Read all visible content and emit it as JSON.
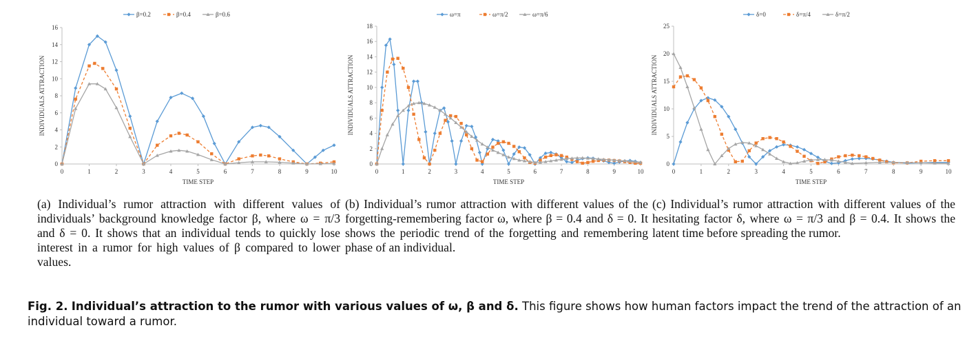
{
  "chart_data": [
    {
      "type": "line",
      "panel": "a",
      "xlabel": "TIME STEP",
      "ylabel": "INDIVIDUALS ATTRACTION",
      "xlim": [
        0,
        10
      ],
      "ylim": [
        0,
        16
      ],
      "xticks": [
        "0",
        "1",
        "2",
        "3",
        "4",
        "5",
        "6",
        "7",
        "8",
        "9",
        "10"
      ],
      "yticks": [
        "0",
        "2",
        "4",
        "6",
        "8",
        "10",
        "12",
        "14",
        "16"
      ],
      "legend_position": "top",
      "series": [
        {
          "name": "β=0.2",
          "color": "#5b9bd5",
          "marker": "diamond",
          "dash": "solid",
          "x": [
            0,
            0.5,
            1,
            1.3,
            1.6,
            2,
            2.5,
            3,
            3.5,
            4,
            4.4,
            4.8,
            5.2,
            5.6,
            6,
            6.5,
            7,
            7.3,
            7.6,
            8,
            8.5,
            9,
            9.3,
            9.6,
            10
          ],
          "y": [
            0,
            8.9,
            14,
            15,
            14.3,
            11,
            5.6,
            0,
            5,
            7.8,
            8.3,
            7.7,
            5.6,
            2.4,
            0,
            2.6,
            4.3,
            4.5,
            4.3,
            3.2,
            1.6,
            0,
            0.8,
            1.6,
            2.2
          ]
        },
        {
          "name": "β=0.4",
          "color": "#ed7d31",
          "marker": "square",
          "dash": "dashed",
          "x": [
            0,
            0.5,
            1,
            1.2,
            1.5,
            2,
            2.5,
            3,
            3.5,
            4,
            4.3,
            4.6,
            5,
            5.5,
            6,
            6.5,
            7,
            7.3,
            7.6,
            8,
            8.5,
            9,
            9.5,
            10
          ],
          "y": [
            0,
            7.6,
            11.5,
            11.8,
            11.2,
            8.8,
            4.2,
            0,
            2.2,
            3.3,
            3.6,
            3.4,
            2.6,
            1.2,
            0,
            0.6,
            0.95,
            1.05,
            0.95,
            0.6,
            0.25,
            0,
            0.1,
            0.25
          ]
        },
        {
          "name": "β=0.6",
          "color": "#a5a5a5",
          "marker": "triangle",
          "dash": "solid",
          "x": [
            0,
            0.5,
            1,
            1.3,
            1.6,
            2,
            2.5,
            3,
            3.5,
            4,
            4.3,
            4.6,
            5,
            5.5,
            6,
            6.5,
            7,
            7.5,
            8,
            8.5,
            9,
            9.5,
            10
          ],
          "y": [
            0,
            6.5,
            9.4,
            9.4,
            8.8,
            6.6,
            3.2,
            0,
            1,
            1.5,
            1.6,
            1.5,
            1.1,
            0.5,
            0,
            0.15,
            0.25,
            0.25,
            0.2,
            0.1,
            0,
            0.03,
            0.05
          ]
        }
      ]
    },
    {
      "type": "line",
      "panel": "b",
      "xlabel": "TIME STEP",
      "ylabel": "INDIVIDUALS ATTRACTION",
      "xlim": [
        0,
        10
      ],
      "ylim": [
        0,
        18
      ],
      "xticks": [
        "0",
        "1",
        "2",
        "3",
        "4",
        "5",
        "6",
        "7",
        "8",
        "9",
        "10"
      ],
      "yticks": [
        "0",
        "2",
        "4",
        "6",
        "8",
        "10",
        "12",
        "14",
        "16",
        "18"
      ],
      "legend_position": "top",
      "series": [
        {
          "name": "ω=π",
          "color": "#5b9bd5",
          "marker": "diamond",
          "dash": "solid",
          "x": [
            0,
            0.2,
            0.35,
            0.5,
            0.65,
            0.8,
            1,
            1.2,
            1.4,
            1.55,
            1.7,
            1.85,
            2,
            2.2,
            2.4,
            2.55,
            2.7,
            2.85,
            3,
            3.2,
            3.4,
            3.6,
            3.75,
            3.9,
            4,
            4.2,
            4.4,
            4.6,
            4.8,
            5,
            5.2,
            5.4,
            5.6,
            5.8,
            6,
            6.2,
            6.4,
            6.6,
            6.8,
            7,
            7.2,
            7.4,
            7.6,
            7.8,
            8,
            8.2,
            8.4,
            8.6,
            8.8,
            9,
            9.2,
            9.4,
            9.6,
            9.8,
            10
          ],
          "y": [
            0,
            10,
            15.5,
            16.3,
            13,
            7,
            0,
            7,
            10.8,
            10.8,
            8,
            4.2,
            0,
            4,
            7,
            7.3,
            5.5,
            3,
            0,
            3,
            5,
            4.9,
            3.5,
            1.5,
            0,
            2,
            3.2,
            3,
            1.8,
            0,
            1.3,
            2.2,
            2.1,
            1.2,
            0,
            0.8,
            1.4,
            1.5,
            1.3,
            0.8,
            0.3,
            0.2,
            0.5,
            0.7,
            0.8,
            0.75,
            0.6,
            0.4,
            0.2,
            0.1,
            0.25,
            0.4,
            0.45,
            0.35,
            0.2
          ]
        },
        {
          "name": "ω=π/2",
          "color": "#ed7d31",
          "marker": "square",
          "dash": "dashed",
          "x": [
            0,
            0.2,
            0.4,
            0.6,
            0.8,
            1,
            1.2,
            1.4,
            1.6,
            1.8,
            2,
            2.2,
            2.4,
            2.6,
            2.8,
            3,
            3.2,
            3.4,
            3.6,
            3.8,
            4,
            4.2,
            4.4,
            4.6,
            4.8,
            5,
            5.2,
            5.4,
            5.6,
            5.8,
            6,
            6.2,
            6.4,
            6.6,
            6.8,
            7,
            7.2,
            7.4,
            7.6,
            7.8,
            8,
            8.2,
            8.4,
            8.6,
            8.8,
            9,
            9.2,
            9.4,
            9.6,
            9.8,
            10
          ],
          "y": [
            0,
            7,
            12,
            13.7,
            13.8,
            12.5,
            10,
            6.5,
            3.2,
            0.8,
            0,
            1.8,
            4,
            5.7,
            6.3,
            6.2,
            5.3,
            3.8,
            2,
            0.5,
            0.3,
            1.3,
            2.2,
            2.7,
            2.9,
            2.7,
            2.3,
            1.6,
            0.8,
            0.2,
            0.1,
            0.5,
            0.9,
            1.1,
            1.2,
            1.1,
            0.9,
            0.6,
            0.3,
            0.1,
            0.2,
            0.35,
            0.45,
            0.5,
            0.5,
            0.45,
            0.4,
            0.3,
            0.2,
            0.1,
            0.1
          ]
        },
        {
          "name": "ω=π/6",
          "color": "#a5a5a5",
          "marker": "triangle",
          "dash": "solid",
          "x": [
            0,
            0.2,
            0.4,
            0.6,
            0.8,
            1,
            1.2,
            1.4,
            1.6,
            1.8,
            2,
            2.2,
            2.4,
            2.6,
            2.8,
            3,
            3.2,
            3.4,
            3.6,
            3.8,
            4,
            4.2,
            4.4,
            4.6,
            4.8,
            5,
            5.2,
            5.4,
            5.6,
            5.8,
            6,
            6.2,
            6.4,
            6.6,
            6.8,
            7,
            7.2,
            7.4,
            7.6,
            7.8,
            8,
            8.2,
            8.4,
            8.6,
            8.8,
            9,
            9.2,
            9.4,
            9.6,
            9.8,
            10
          ],
          "y": [
            0,
            2,
            3.8,
            5.2,
            6.3,
            7,
            7.6,
            7.9,
            8,
            7.9,
            7.7,
            7.4,
            7,
            6.5,
            6,
            5.4,
            4.8,
            4.2,
            3.6,
            3.1,
            2.6,
            2.2,
            1.8,
            1.5,
            1.2,
            0.9,
            0.7,
            0.5,
            0.4,
            0.3,
            0.2,
            0.2,
            0.3,
            0.4,
            0.5,
            0.6,
            0.7,
            0.75,
            0.8,
            0.8,
            0.75,
            0.7,
            0.65,
            0.6,
            0.55,
            0.5,
            0.45,
            0.4,
            0.35,
            0.3,
            0.2
          ]
        }
      ]
    },
    {
      "type": "line",
      "panel": "c",
      "xlabel": "TIME STEP",
      "ylabel": "INDIVIDUALS ATTRACTION",
      "xlim": [
        0,
        10
      ],
      "ylim": [
        0,
        25
      ],
      "xticks": [
        "0",
        "1",
        "2",
        "3",
        "4",
        "5",
        "6",
        "7",
        "8",
        "9",
        "10"
      ],
      "yticks": [
        "0",
        "5",
        "10",
        "15",
        "20",
        "25"
      ],
      "legend_position": "top",
      "series": [
        {
          "name": "δ=0",
          "color": "#5b9bd5",
          "marker": "diamond",
          "dash": "solid",
          "x": [
            0,
            0.25,
            0.5,
            0.75,
            1,
            1.25,
            1.5,
            1.75,
            2,
            2.25,
            2.5,
            2.75,
            3,
            3.25,
            3.5,
            3.75,
            4,
            4.25,
            4.5,
            4.75,
            5,
            5.25,
            5.5,
            5.75,
            6,
            6.25,
            6.5,
            6.75,
            7,
            7.25,
            7.5,
            7.75,
            8,
            8.5,
            9,
            9.5,
            10
          ],
          "y": [
            0,
            4,
            7.5,
            10,
            11.5,
            12,
            11.6,
            10.4,
            8.6,
            6.3,
            3.8,
            1.3,
            0,
            1.3,
            2.4,
            3.1,
            3.5,
            3.4,
            3.1,
            2.6,
            1.9,
            1.2,
            0.5,
            0.1,
            0.2,
            0.6,
            0.9,
            1,
            1,
            0.9,
            0.7,
            0.5,
            0.3,
            0.15,
            0.2,
            0.3,
            0.3
          ]
        },
        {
          "name": "δ=π/4",
          "color": "#ed7d31",
          "marker": "square",
          "dash": "dashed",
          "x": [
            0,
            0.25,
            0.5,
            0.75,
            1,
            1.25,
            1.5,
            1.75,
            2,
            2.25,
            2.5,
            2.75,
            3,
            3.25,
            3.5,
            3.75,
            4,
            4.25,
            4.5,
            4.75,
            5,
            5.25,
            5.5,
            5.75,
            6,
            6.25,
            6.5,
            6.75,
            7,
            7.25,
            7.5,
            7.75,
            8,
            8.5,
            9,
            9.5,
            10
          ],
          "y": [
            14,
            15.8,
            16,
            15.3,
            13.8,
            11.5,
            8.6,
            5.4,
            2.5,
            0.4,
            0.5,
            2.4,
            3.8,
            4.6,
            4.8,
            4.6,
            4,
            3.2,
            2.3,
            1.4,
            0.6,
            0.1,
            0.4,
            0.9,
            1.3,
            1.5,
            1.6,
            1.5,
            1.3,
            1,
            0.7,
            0.4,
            0.2,
            0.2,
            0.5,
            0.6,
            0.6
          ]
        },
        {
          "name": "δ=π/2",
          "color": "#a5a5a5",
          "marker": "triangle",
          "dash": "solid",
          "x": [
            0,
            0.25,
            0.5,
            0.75,
            1,
            1.25,
            1.5,
            1.75,
            2,
            2.25,
            2.5,
            2.75,
            3,
            3.25,
            3.5,
            3.75,
            4,
            4.25,
            4.5,
            4.75,
            5,
            5.25,
            5.5,
            5.75,
            6,
            6.25,
            6.5,
            7,
            7.5,
            8,
            8.5,
            9,
            9.5,
            10
          ],
          "y": [
            20,
            17.5,
            14,
            10.2,
            6.3,
            2.6,
            0,
            1.5,
            2.8,
            3.6,
            3.9,
            3.8,
            3.3,
            2.6,
            1.8,
            1,
            0.4,
            0.1,
            0.2,
            0.5,
            0.7,
            0.8,
            0.8,
            0.7,
            0.5,
            0.3,
            0.1,
            0.2,
            0.3,
            0.3,
            0.25,
            0.2,
            0.15,
            0.1
          ]
        }
      ]
    }
  ],
  "captions": {
    "a": "(a) Individual’s rumor attraction with different values of individuals’ background knowledge factor β, where ω = π/3 and δ = 0. It shows that an individual tends to quickly lose interest in a rumor for high values of β compared to lower values.",
    "b": "(b) Individual’s rumor attraction with different values of the forgetting-remembering factor ω, where β = 0.4 and δ = 0. It shows the periodic trend of the forgetting and remembering phase of an individual.",
    "c": "(c) Individual’s rumor attraction with different values of the hesitating factor δ, where ω = π/3 and β = 0.4. It shows the latent time before spreading the rumor."
  },
  "figure_caption": {
    "label": "Fig. 2.",
    "bold_text": "Individual’s attraction to the rumor with various values of ω, β and δ.",
    "text": "This figure shows how human factors impact the trend of the attraction of an individual toward a rumor."
  }
}
